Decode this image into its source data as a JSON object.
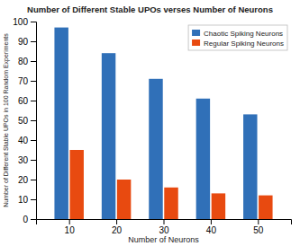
{
  "chart_data": {
    "type": "bar",
    "title": "Number of Different Stable UPOs verses Number of Neurons",
    "xlabel": "Number of Neurons",
    "ylabel": "Number of Different Stable UPOs in 100 Random Experiments",
    "x": [
      10,
      20,
      30,
      40,
      50
    ],
    "series": [
      {
        "name": "Chaotic Spiking Neurons",
        "color": "#3070B8",
        "values": [
          97,
          84,
          71,
          61,
          53
        ]
      },
      {
        "name": "Regular Spiking Neurons",
        "color": "#E84A10",
        "values": [
          35,
          20,
          16,
          13,
          12
        ]
      }
    ],
    "xlim": [
      3,
      57
    ],
    "xticks": [
      10,
      20,
      30,
      40,
      50
    ],
    "ylim": [
      0,
      100
    ],
    "yticks": [
      0,
      10,
      20,
      30,
      40,
      50,
      60,
      70,
      80,
      90,
      100
    ],
    "legend": "upper right",
    "grid": false
  }
}
